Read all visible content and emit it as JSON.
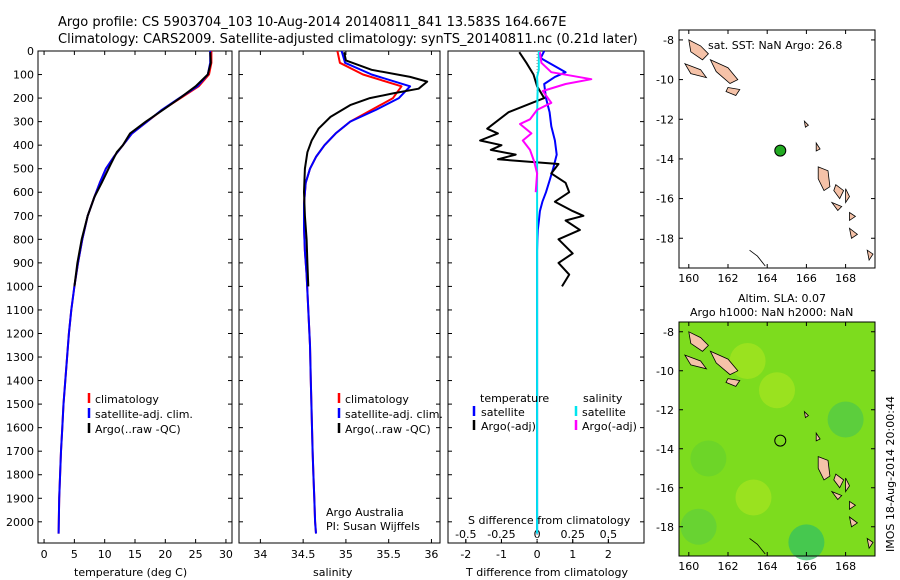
{
  "title_line1": "Argo profile: CS 5903704_103 10-Aug-2014 20140811_841 13.583S 164.667E",
  "title_line2": "Climatology: CARS2009. Satellite-adjusted climatology: synTS_20140811.nc (0.21d later)",
  "colors": {
    "climatology": "#ff0000",
    "satellite": "#0000ff",
    "argo": "#000000",
    "sal_satellite": "#00e5ee",
    "sal_argo": "#ff00ff",
    "land": "#f5c2a8",
    "float_marker": "#22aa22",
    "sla_field": "#7ddc1e"
  },
  "depth_axis": {
    "ticks": [
      0,
      100,
      200,
      300,
      400,
      500,
      600,
      700,
      800,
      900,
      1000,
      1100,
      1200,
      1300,
      1400,
      1500,
      1600,
      1700,
      1800,
      1900,
      2000
    ],
    "ylim": [
      0,
      2090
    ]
  },
  "chart_data": [
    {
      "type": "line",
      "xlabel": "temperature (deg C)",
      "xlim": [
        -1,
        31
      ],
      "xticks": [
        0,
        5,
        10,
        15,
        20,
        25,
        30
      ],
      "legend": {
        "position": "lower-middle",
        "entries": [
          "climatology",
          "satellite-adj. clim.",
          "Argo(..raw -QC)"
        ]
      },
      "series": [
        {
          "name": "climatology",
          "x": [
            27.6,
            27.6,
            27.2,
            25.5,
            22.5,
            19.5,
            17.0,
            14.5,
            13.0,
            11.5,
            10.2,
            9.2,
            8.3,
            7.2,
            6.3,
            5.6,
            5.0,
            4.5,
            4.1,
            3.8,
            3.5,
            3.2,
            3.0,
            2.8,
            2.65,
            2.5,
            2.4
          ],
          "y": [
            0,
            50,
            100,
            150,
            200,
            250,
            300,
            350,
            400,
            450,
            500,
            560,
            620,
            700,
            800,
            900,
            1000,
            1100,
            1200,
            1300,
            1400,
            1500,
            1600,
            1700,
            1800,
            1900,
            2050
          ]
        },
        {
          "name": "satellite-adj. clim.",
          "x": [
            27.4,
            27.4,
            27.0,
            25.3,
            22.3,
            19.4,
            17.0,
            14.5,
            13.0,
            11.5,
            10.2,
            9.2,
            8.3,
            7.2,
            6.3,
            5.6,
            5.0,
            4.5,
            4.1,
            3.8,
            3.5,
            3.2,
            3.0,
            2.8,
            2.65,
            2.5,
            2.4
          ],
          "y": [
            0,
            50,
            100,
            150,
            200,
            250,
            300,
            350,
            400,
            450,
            500,
            560,
            620,
            700,
            800,
            900,
            1000,
            1100,
            1200,
            1300,
            1400,
            1500,
            1600,
            1700,
            1800,
            1900,
            2050
          ]
        },
        {
          "name": "Argo(..raw -QC)",
          "x": [
            27.4,
            27.5,
            27.0,
            25.0,
            22.4,
            19.6,
            16.8,
            14.2,
            13.0,
            12.0,
            11.0,
            9.5,
            8.3,
            7.2,
            6.2,
            5.5,
            5.0
          ],
          "y": [
            5,
            50,
            100,
            150,
            200,
            250,
            300,
            350,
            400,
            430,
            480,
            560,
            620,
            700,
            800,
            900,
            1000
          ]
        }
      ]
    },
    {
      "type": "line",
      "xlabel": "salinity",
      "xlim": [
        33.75,
        36.1
      ],
      "xticks": [
        34,
        34.5,
        35,
        35.5,
        36
      ],
      "legend": {
        "position": "lower-middle",
        "entries": [
          "climatology",
          "satellite-adj. clim.",
          "Argo(..raw -QC)"
        ]
      },
      "annotation": [
        "Argo Australia",
        "PI: Susan Wijffels"
      ],
      "series": [
        {
          "name": "climatology",
          "x": [
            34.9,
            34.93,
            35.2,
            35.65,
            35.55,
            35.3,
            35.05,
            34.88,
            34.75,
            34.65,
            34.58,
            34.53,
            34.51,
            34.51,
            34.52,
            34.54,
            34.56,
            34.58,
            34.59,
            34.6,
            34.61,
            34.62,
            34.63,
            34.64,
            34.65
          ],
          "y": [
            0,
            50,
            100,
            150,
            200,
            250,
            300,
            350,
            400,
            450,
            500,
            560,
            650,
            750,
            850,
            950,
            1100,
            1250,
            1400,
            1550,
            1700,
            1800,
            1900,
            2000,
            2050
          ]
        },
        {
          "name": "satellite-adj. clim.",
          "x": [
            34.95,
            34.99,
            35.3,
            35.75,
            35.62,
            35.35,
            35.05,
            34.88,
            34.75,
            34.65,
            34.58,
            34.53,
            34.51,
            34.51,
            34.52,
            34.54,
            34.56,
            34.58,
            34.59,
            34.6,
            34.61,
            34.62,
            34.63,
            34.64,
            34.65
          ],
          "y": [
            0,
            50,
            100,
            150,
            200,
            250,
            300,
            350,
            400,
            450,
            500,
            560,
            650,
            750,
            850,
            950,
            1100,
            1250,
            1400,
            1550,
            1700,
            1800,
            1900,
            2000,
            2050
          ]
        },
        {
          "name": "Argo(..raw -QC)",
          "x": [
            34.98,
            35.0,
            35.3,
            35.75,
            35.95,
            35.85,
            35.55,
            35.28,
            35.05,
            34.82,
            34.68,
            34.6,
            34.55,
            34.52,
            34.51,
            34.52,
            34.54,
            34.55,
            34.56
          ],
          "y": [
            5,
            40,
            80,
            110,
            130,
            160,
            180,
            200,
            230,
            280,
            330,
            380,
            430,
            500,
            600,
            700,
            800,
            900,
            1000
          ]
        }
      ]
    },
    {
      "type": "line",
      "xlabel": "T difference from climatology",
      "xlabel_top": "S difference from climatology",
      "xlim_T": [
        -2.5,
        3.0
      ],
      "xticks_T": [
        -2,
        -1,
        0,
        1,
        2
      ],
      "xlim_S": [
        -0.625,
        0.75
      ],
      "xticks_S": [
        -0.5,
        -0.25,
        0,
        0.25,
        0.5
      ],
      "legend": {
        "position": "lower-middle",
        "groups": [
          "temperature",
          "salinity"
        ],
        "entries": [
          "satellite",
          "Argo(-adj)",
          "satellite",
          "Argo(-adj)"
        ]
      },
      "series": [
        {
          "name": "satellite",
          "group": "temperature",
          "x": [
            0.2,
            0.1,
            0.8,
            0.5,
            0.2,
            0.25,
            0.35,
            0.4,
            0.5,
            0.55,
            0.45,
            0.35,
            0.25,
            0.15,
            0.08,
            0.05,
            0.02,
            0.01,
            0.0,
            0.0,
            0.0,
            0.0,
            0.0,
            0.0
          ],
          "y": [
            0,
            30,
            90,
            110,
            140,
            200,
            260,
            320,
            380,
            440,
            500,
            550,
            600,
            640,
            680,
            720,
            760,
            800,
            850,
            1000,
            1300,
            1600,
            1900,
            2050
          ]
        },
        {
          "name": "Argo(-adj)",
          "group": "temperature",
          "x": [
            -0.5,
            -0.3,
            -0.1,
            0.0,
            0.2,
            -0.8,
            -1.4,
            -1.1,
            -1.6,
            -1.0,
            -1.3,
            -0.6,
            -1.1,
            0.6,
            0.4,
            0.8,
            0.9,
            0.5,
            1.0,
            1.3,
            0.8,
            1.2,
            0.6,
            1.0,
            0.6,
            0.9,
            0.7
          ],
          "y": [
            5,
            50,
            100,
            150,
            200,
            260,
            330,
            350,
            380,
            400,
            420,
            440,
            460,
            480,
            520,
            560,
            600,
            640,
            680,
            700,
            720,
            760,
            800,
            860,
            900,
            950,
            1000
          ]
        },
        {
          "name": "satellite",
          "group": "salinity",
          "x": [
            0.012,
            0.012,
            0.0,
            0.004,
            0.002,
            0.0,
            0.0,
            0.0,
            0.0,
            0.0
          ],
          "y": [
            0,
            80,
            110,
            160,
            200,
            300,
            500,
            1000,
            1500,
            2050
          ]
        },
        {
          "name": "Argo(-adj)",
          "group": "salinity",
          "x": [
            0.02,
            0.03,
            0.1,
            0.38,
            0.2,
            0.04,
            0.1,
            0.0,
            -0.05,
            -0.12,
            -0.04,
            -0.1,
            -0.05,
            -0.02,
            0.0,
            -0.01
          ],
          "y": [
            5,
            50,
            90,
            120,
            140,
            170,
            220,
            250,
            290,
            310,
            350,
            380,
            420,
            470,
            520,
            600
          ]
        }
      ]
    },
    {
      "type": "scatter",
      "panel": "map",
      "title": "sat. SST: NaN Argo: 26.8",
      "xlim": [
        159.5,
        169.5
      ],
      "ylim": [
        -19.5,
        -7.5
      ],
      "xticks": [
        160,
        162,
        164,
        166,
        168
      ],
      "yticks": [
        -8,
        -10,
        -12,
        -14,
        -16,
        -18
      ],
      "points": [
        {
          "x": 164.667,
          "y": -13.583
        }
      ]
    },
    {
      "type": "heatmap",
      "panel": "map",
      "title_line1": "Altim. SLA: 0.07",
      "title_line2": "Argo h1000: NaN h2000: NaN",
      "xlim": [
        159.5,
        169.5
      ],
      "ylim": [
        -19.5,
        -7.5
      ],
      "xticks": [
        160,
        162,
        164,
        166,
        168
      ],
      "yticks": [
        -8,
        -10,
        -12,
        -14,
        -16,
        -18
      ],
      "points": [
        {
          "x": 164.667,
          "y": -13.583
        }
      ],
      "side_label": "IMOS 18-Aug-2014 20:00:44"
    }
  ],
  "labels": {
    "legend_climatology": "climatology",
    "legend_satellite": "satellite-adj. clim.",
    "legend_argo": "Argo(..raw -QC)",
    "legend_temperature": "temperature",
    "legend_salinity": "salinity",
    "legend_sat": "satellite",
    "legend_argo_adj": "Argo(-adj)"
  }
}
